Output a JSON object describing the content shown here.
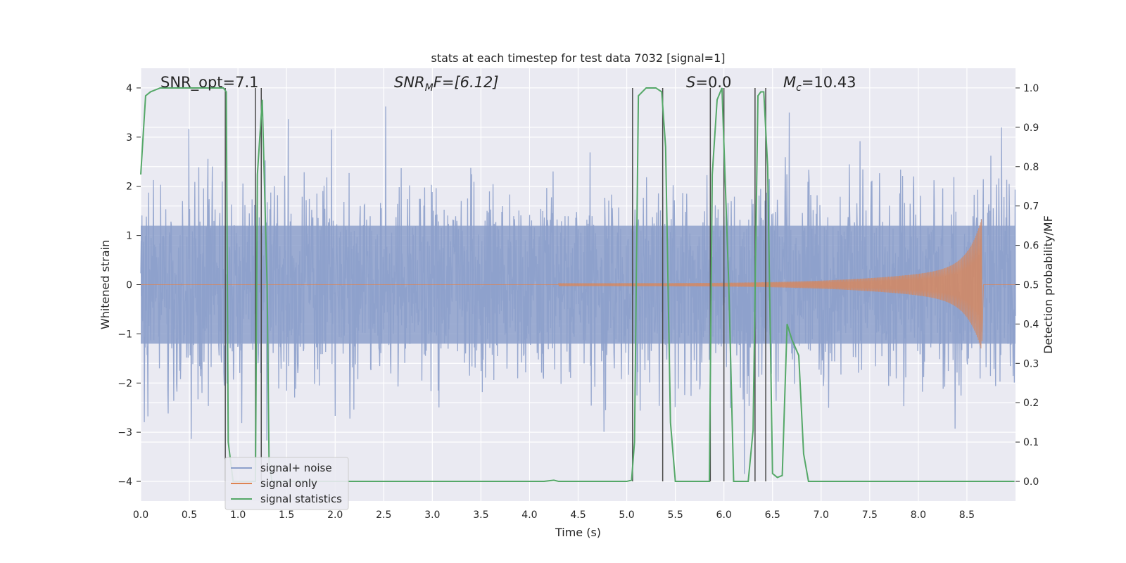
{
  "chart_data": {
    "type": "line",
    "title": "stats at each timestep for test data 7032 [signal=1]",
    "xlabel": "Time (s)",
    "ylabel": "Whitened strain",
    "y2label": "Detection probability/MF",
    "xlim": [
      0.0,
      9.0
    ],
    "ylim": [
      -4.4,
      4.4
    ],
    "y2lim": [
      -0.05,
      1.05
    ],
    "x_ticks": [
      0.0,
      0.5,
      1.0,
      1.5,
      2.0,
      2.5,
      3.0,
      3.5,
      4.0,
      4.5,
      5.0,
      5.5,
      6.0,
      6.5,
      7.0,
      7.5,
      8.0,
      8.5
    ],
    "x_tick_labels": [
      "0.0",
      "0.5",
      "1.0",
      "1.5",
      "2.0",
      "2.5",
      "3.0",
      "3.5",
      "4.0",
      "4.5",
      "5.0",
      "5.5",
      "6.0",
      "6.5",
      "7.0",
      "7.5",
      "8.0",
      "8.5"
    ],
    "y_ticks": [
      -4,
      -3,
      -2,
      -1,
      0,
      1,
      2,
      3,
      4
    ],
    "y_tick_labels": [
      "−4",
      "−3",
      "−2",
      "−1",
      "0",
      "1",
      "2",
      "3",
      "4"
    ],
    "y2_ticks": [
      0.0,
      0.1,
      0.2,
      0.3,
      0.4,
      0.5,
      0.6,
      0.7,
      0.8,
      0.9,
      1.0
    ],
    "y2_tick_labels": [
      "0.0",
      "0.1",
      "0.2",
      "0.3",
      "0.4",
      "0.5",
      "0.6",
      "0.7",
      "0.8",
      "0.9",
      "1.0"
    ],
    "grid": true,
    "legend_position": "lower-left",
    "legend": [
      "signal+ noise",
      "signal only",
      "signal statistics"
    ],
    "annotations": {
      "snr_opt": "SNR_opt=7.1",
      "snr_mf_prefix": "SNR",
      "snr_mf_sub": "M",
      "snr_mf_suffix": "F=[6.12]",
      "s_label": "S",
      "s_value": "=0.0",
      "mc_prefix": "M",
      "mc_sub": "c",
      "mc_value": "=10.43"
    },
    "colors": {
      "noise": "#8da0cb",
      "signal": "#dd8452",
      "statistics": "#55a868",
      "vlines": "#4a4a4a",
      "background": "#eaeaf2",
      "grid": "#ffffff"
    },
    "series": [
      {
        "name": "signal+ noise",
        "axis": "left",
        "description_range": [
          -3.9,
          4.0
        ],
        "envelope": {
          "peak_pos": 3.95,
          "peak_neg": -3.85
        }
      },
      {
        "name": "signal only",
        "axis": "left",
        "chirp": {
          "start": 4.3,
          "end": 8.65,
          "peak_amplitude_pos": 1.3,
          "peak_amplitude_neg": -1.15
        }
      },
      {
        "name": "signal statistics",
        "axis": "right",
        "x": [
          0.0,
          0.05,
          0.1,
          0.15,
          0.2,
          0.85,
          0.88,
          0.9,
          0.95,
          1.0,
          1.05,
          1.1,
          1.15,
          1.18,
          1.2,
          1.25,
          1.3,
          1.32,
          1.35,
          1.4,
          1.45,
          1.5,
          4.15,
          4.25,
          4.3,
          5.0,
          5.05,
          5.08,
          5.12,
          5.2,
          5.3,
          5.36,
          5.4,
          5.45,
          5.5,
          5.8,
          5.85,
          5.88,
          5.93,
          5.98,
          6.05,
          6.1,
          6.12,
          6.25,
          6.3,
          6.35,
          6.38,
          6.41,
          6.45,
          6.5,
          6.55,
          6.6,
          6.65,
          6.7,
          6.77,
          6.82,
          6.87,
          6.9,
          7.0,
          8.99
        ],
        "y": [
          0.78,
          0.98,
          0.99,
          0.995,
          1.0,
          1.0,
          0.99,
          0.1,
          0.0,
          0.0,
          0.0,
          0.0,
          0.0,
          0.0,
          0.78,
          0.97,
          0.5,
          0.05,
          0.0,
          0.0,
          0.0,
          0.0,
          0.0,
          0.003,
          0.0,
          0.0,
          0.003,
          0.1,
          0.98,
          1.0,
          1.0,
          0.99,
          0.85,
          0.15,
          0.0,
          0.0,
          0.0,
          0.78,
          0.97,
          1.0,
          0.5,
          0.0,
          0.0,
          0.0,
          0.13,
          0.98,
          0.99,
          0.99,
          0.8,
          0.02,
          0.01,
          0.015,
          0.4,
          0.36,
          0.32,
          0.07,
          0.0,
          0.0,
          0.0,
          0.0
        ]
      }
    ],
    "vlines_x": [
      0.87,
      1.18,
      1.24,
      5.06,
      5.37,
      5.86,
      6.0,
      6.32,
      6.43
    ]
  }
}
